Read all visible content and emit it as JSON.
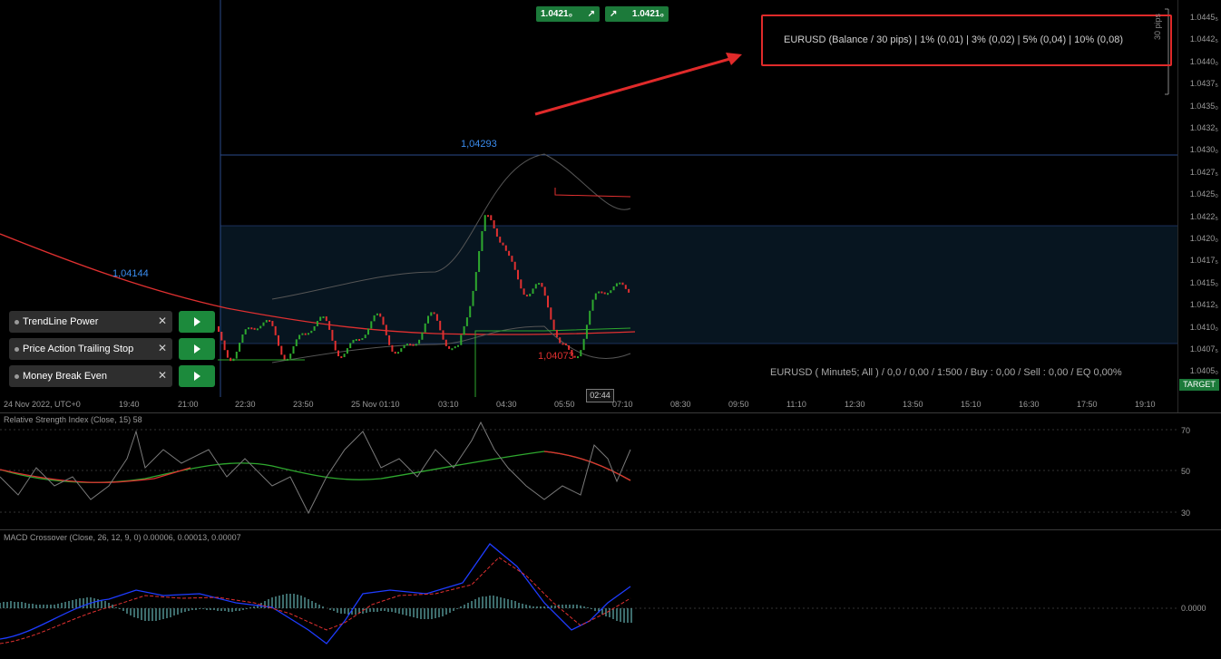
{
  "quick_trade": {
    "sell_price": "1.0421₀",
    "buy_price": "1.0421₀"
  },
  "info_box": {
    "text": "EURUSD (Balance / 30 pips) | 1% (0,01) | 3% (0,02) | 5% (0,04) | 10% (0,08)"
  },
  "pips_label": "30 pips",
  "status_line": "EURUSD ( Minute5; All ) / 0,0 / 0,00 / 1:500 / Buy : 0,00 / Sell : 0,00 / EQ 0,00%",
  "labels": {
    "high": "1,04293",
    "low": "1,04073",
    "left_high": "1,04144"
  },
  "price_axis": [
    "1.0445₅",
    "1.0442₅",
    "1.0440₀",
    "1.0437₅",
    "1.0435₀",
    "1.0432₅",
    "1.0430₀",
    "1.0427₅",
    "1.0425₀",
    "1.0422₅",
    "1.0420₀",
    "1.0417₅",
    "1.0415₀",
    "1.0412₅",
    "1.0410₀",
    "1.0407₅",
    "1.0405₀"
  ],
  "time_axis": [
    "24 Nov 2022, UTC+0",
    "19:40",
    "21:00",
    "22:30",
    "23:50",
    "25 Nov 01:10",
    "03:10",
    "04:30",
    "05:50",
    "07:10",
    "08:30",
    "09:50",
    "11:10",
    "12:30",
    "13:50",
    "15:10",
    "16:30",
    "17:50",
    "19:10"
  ],
  "current_time": "02:44",
  "target_label": "TARGET",
  "tools": [
    {
      "label": "TrendLine Power"
    },
    {
      "label": "Price Action Trailing Stop"
    },
    {
      "label": "Money Break Even"
    }
  ],
  "rsi": {
    "title": "Relative Strength Index (Close, 15) 58",
    "levels": [
      "70",
      "50",
      "30"
    ]
  },
  "macd": {
    "title": "MACD Crossover (Close, 26, 12, 9, 0) 0.00006, 0.00013, 0.00007",
    "zero": "0.0000"
  },
  "colors": {
    "accent_green": "#1c7a3a",
    "alert_red": "#e02a2a",
    "high_blue": "#3a8df0",
    "low_red": "#e03030"
  }
}
